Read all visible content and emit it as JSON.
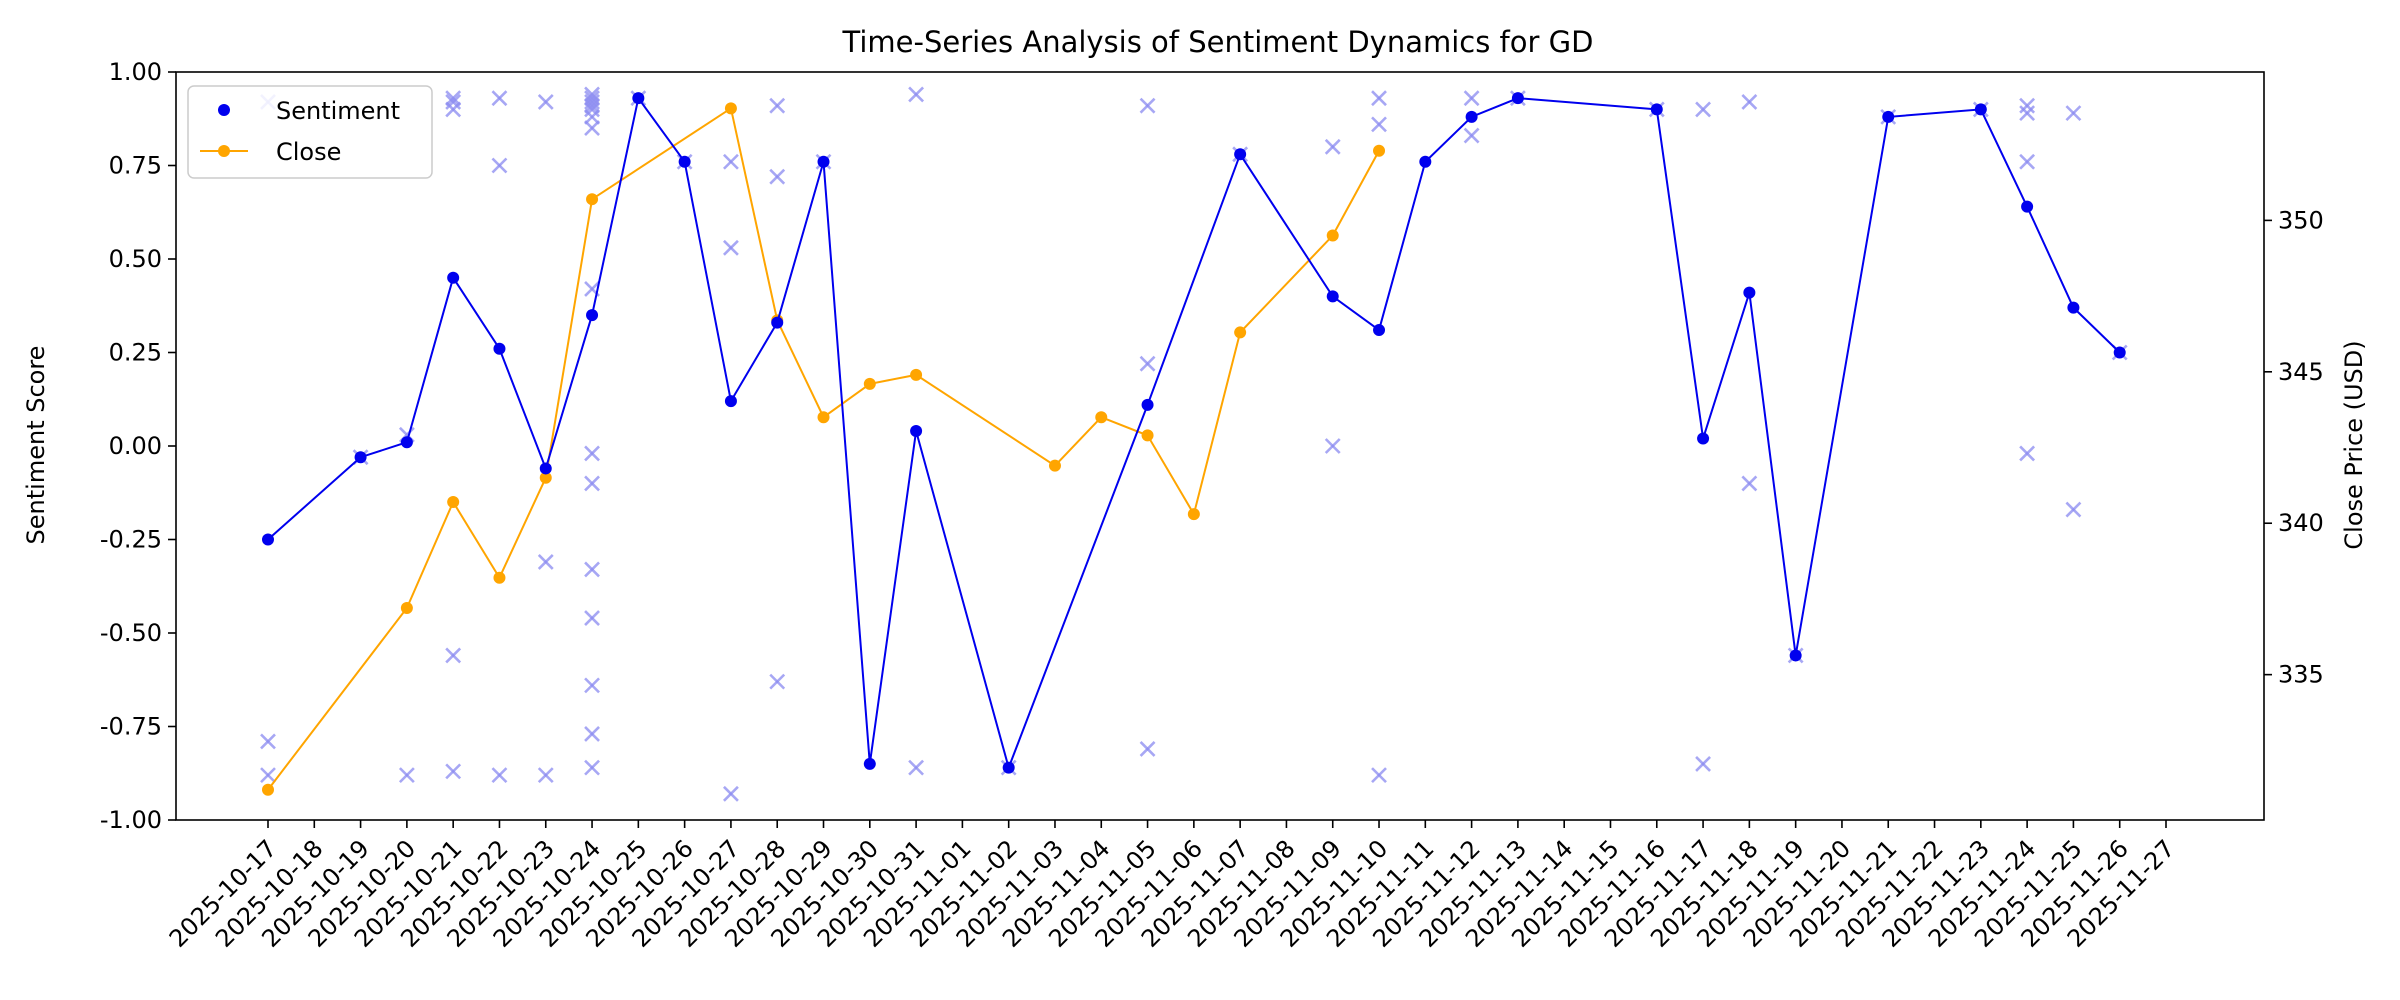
{
  "chart_data": {
    "type": "line",
    "title": "Time-Series Analysis of Sentiment Dynamics for GD",
    "ylabel": "Sentiment Score",
    "y2label": "Close Price (USD)",
    "ylim": [
      -1.0,
      1.0
    ],
    "y2lim": [
      330.2,
      354.9
    ],
    "yticks": [
      "-1.00",
      "-0.75",
      "-0.50",
      "-0.25",
      "0.00",
      "0.25",
      "0.50",
      "0.75",
      "1.00"
    ],
    "y2ticks": [
      "335",
      "340",
      "345",
      "350"
    ],
    "x_dates": [
      "2025-10-17",
      "2025-10-18",
      "2025-10-19",
      "2025-10-20",
      "2025-10-21",
      "2025-10-22",
      "2025-10-23",
      "2025-10-24",
      "2025-10-25",
      "2025-10-26",
      "2025-10-27",
      "2025-10-28",
      "2025-10-29",
      "2025-10-30",
      "2025-10-31",
      "2025-11-01",
      "2025-11-02",
      "2025-11-03",
      "2025-11-04",
      "2025-11-05",
      "2025-11-06",
      "2025-11-07",
      "2025-11-08",
      "2025-11-09",
      "2025-11-10",
      "2025-11-11",
      "2025-11-12",
      "2025-11-13",
      "2025-11-14",
      "2025-11-15",
      "2025-11-16",
      "2025-11-17",
      "2025-11-18",
      "2025-11-19",
      "2025-11-20",
      "2025-11-21",
      "2025-11-22",
      "2025-11-23",
      "2025-11-24",
      "2025-11-25",
      "2025-11-26",
      "2025-11-27"
    ],
    "legend": {
      "position": "top-left",
      "entries": [
        "Sentiment",
        "Close"
      ]
    },
    "colors": {
      "sentiment": "#0000ee",
      "close": "#ffa500",
      "raw": "#8a8af0"
    },
    "series": [
      {
        "name": "Sentiment",
        "axis": "left",
        "points": [
          [
            "2025-10-17",
            -0.25
          ],
          [
            "2025-10-19",
            -0.03
          ],
          [
            "2025-10-20",
            0.01
          ],
          [
            "2025-10-21",
            0.45
          ],
          [
            "2025-10-22",
            0.26
          ],
          [
            "2025-10-23",
            -0.06
          ],
          [
            "2025-10-24",
            0.35
          ],
          [
            "2025-10-25",
            0.93
          ],
          [
            "2025-10-26",
            0.76
          ],
          [
            "2025-10-27",
            0.12
          ],
          [
            "2025-10-28",
            0.33
          ],
          [
            "2025-10-29",
            0.76
          ],
          [
            "2025-10-30",
            -0.85
          ],
          [
            "2025-10-31",
            0.04
          ],
          [
            "2025-11-02",
            -0.86
          ],
          [
            "2025-11-05",
            0.11
          ],
          [
            "2025-11-07",
            0.78
          ],
          [
            "2025-11-09",
            0.4
          ],
          [
            "2025-11-10",
            0.31
          ],
          [
            "2025-11-11",
            0.76
          ],
          [
            "2025-11-12",
            0.88
          ],
          [
            "2025-11-13",
            0.93
          ],
          [
            "2025-11-16",
            0.9
          ],
          [
            "2025-11-17",
            0.02
          ],
          [
            "2025-11-18",
            0.41
          ],
          [
            "2025-11-19",
            -0.56
          ],
          [
            "2025-11-21",
            0.88
          ],
          [
            "2025-11-23",
            0.9
          ],
          [
            "2025-11-24",
            0.64
          ],
          [
            "2025-11-25",
            0.37
          ],
          [
            "2025-11-26",
            0.25
          ]
        ]
      },
      {
        "name": "Close",
        "axis": "right",
        "points": [
          [
            "2025-10-17",
            331.2
          ],
          [
            "2025-10-20",
            337.2
          ],
          [
            "2025-10-21",
            340.7
          ],
          [
            "2025-10-22",
            338.2
          ],
          [
            "2025-10-23",
            341.5
          ],
          [
            "2025-10-24",
            350.7
          ],
          [
            "2025-10-27",
            353.7
          ],
          [
            "2025-10-28",
            346.7
          ],
          [
            "2025-10-29",
            343.5
          ],
          [
            "2025-10-30",
            344.6
          ],
          [
            "2025-10-31",
            344.9
          ],
          [
            "2025-11-03",
            341.9
          ],
          [
            "2025-11-04",
            343.5
          ],
          [
            "2025-11-05",
            342.9
          ],
          [
            "2025-11-06",
            340.3
          ],
          [
            "2025-11-07",
            346.3
          ],
          [
            "2025-11-09",
            349.5
          ],
          [
            "2025-11-10",
            352.3
          ]
        ]
      },
      {
        "name": "raw",
        "type": "scatter",
        "marker": "x",
        "points": [
          [
            "2025-10-17",
            0.92
          ],
          [
            "2025-10-17",
            -0.79
          ],
          [
            "2025-10-17",
            -0.88
          ],
          [
            "2025-10-19",
            -0.03
          ],
          [
            "2025-10-20",
            0.03
          ],
          [
            "2025-10-20",
            -0.88
          ],
          [
            "2025-10-21",
            0.93
          ],
          [
            "2025-10-21",
            0.92
          ],
          [
            "2025-10-21",
            0.9
          ],
          [
            "2025-10-21",
            -0.56
          ],
          [
            "2025-10-21",
            -0.87
          ],
          [
            "2025-10-22",
            0.93
          ],
          [
            "2025-10-22",
            0.75
          ],
          [
            "2025-10-22",
            -0.88
          ],
          [
            "2025-10-23",
            0.92
          ],
          [
            "2025-10-23",
            -0.31
          ],
          [
            "2025-10-23",
            -0.88
          ],
          [
            "2025-10-24",
            0.94
          ],
          [
            "2025-10-24",
            0.93
          ],
          [
            "2025-10-24",
            0.92
          ],
          [
            "2025-10-24",
            0.91
          ],
          [
            "2025-10-24",
            0.9
          ],
          [
            "2025-10-24",
            0.88
          ],
          [
            "2025-10-24",
            0.85
          ],
          [
            "2025-10-24",
            0.42
          ],
          [
            "2025-10-24",
            -0.02
          ],
          [
            "2025-10-24",
            -0.1
          ],
          [
            "2025-10-24",
            -0.33
          ],
          [
            "2025-10-24",
            -0.46
          ],
          [
            "2025-10-24",
            -0.64
          ],
          [
            "2025-10-24",
            -0.77
          ],
          [
            "2025-10-24",
            -0.86
          ],
          [
            "2025-10-25",
            0.93
          ],
          [
            "2025-10-26",
            0.76
          ],
          [
            "2025-10-27",
            0.76
          ],
          [
            "2025-10-27",
            0.53
          ],
          [
            "2025-10-27",
            -0.93
          ],
          [
            "2025-10-28",
            0.91
          ],
          [
            "2025-10-28",
            0.72
          ],
          [
            "2025-10-28",
            -0.63
          ],
          [
            "2025-10-29",
            0.76
          ],
          [
            "2025-10-31",
            0.94
          ],
          [
            "2025-10-31",
            -0.86
          ],
          [
            "2025-11-02",
            -0.86
          ],
          [
            "2025-11-05",
            0.91
          ],
          [
            "2025-11-05",
            0.22
          ],
          [
            "2025-11-05",
            -0.81
          ],
          [
            "2025-11-07",
            0.78
          ],
          [
            "2025-11-09",
            0.8
          ],
          [
            "2025-11-09",
            0.0
          ],
          [
            "2025-11-10",
            0.93
          ],
          [
            "2025-11-10",
            0.86
          ],
          [
            "2025-11-10",
            -0.88
          ],
          [
            "2025-11-12",
            0.93
          ],
          [
            "2025-11-12",
            0.83
          ],
          [
            "2025-11-13",
            0.93
          ],
          [
            "2025-11-16",
            0.9
          ],
          [
            "2025-11-17",
            0.9
          ],
          [
            "2025-11-17",
            -0.85
          ],
          [
            "2025-11-18",
            0.92
          ],
          [
            "2025-11-18",
            -0.1
          ],
          [
            "2025-11-19",
            -0.56
          ],
          [
            "2025-11-21",
            0.88
          ],
          [
            "2025-11-23",
            0.9
          ],
          [
            "2025-11-24",
            0.91
          ],
          [
            "2025-11-24",
            0.89
          ],
          [
            "2025-11-24",
            0.76
          ],
          [
            "2025-11-24",
            -0.02
          ],
          [
            "2025-11-25",
            0.89
          ],
          [
            "2025-11-25",
            -0.17
          ],
          [
            "2025-11-26",
            0.25
          ]
        ]
      }
    ]
  }
}
